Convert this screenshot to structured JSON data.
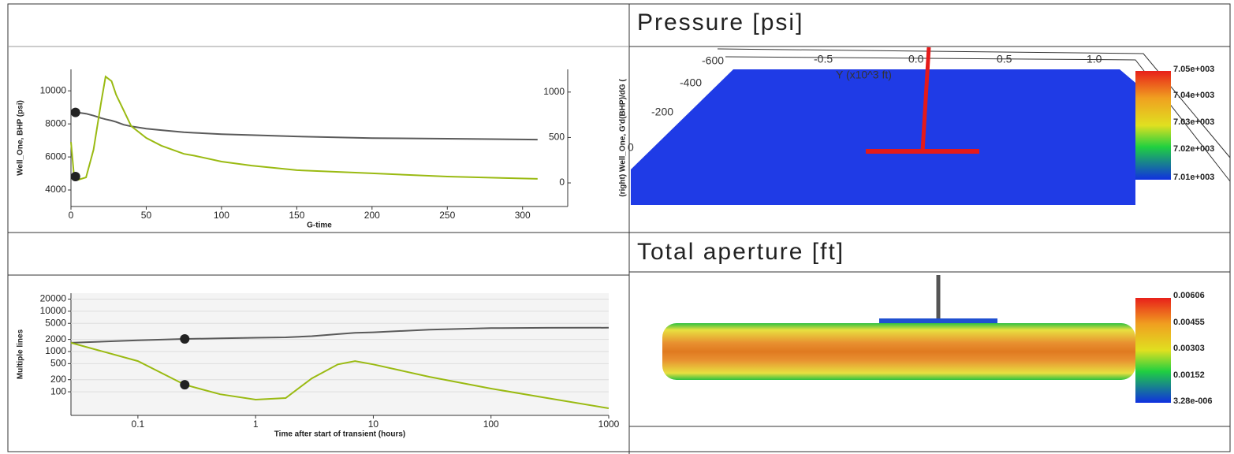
{
  "chart_data": [
    {
      "type": "line",
      "xlabel": "G-time",
      "ylabel": "Well_One, BHP (psi)",
      "y2label": "(right) Well_One, G'd(BHP)/dG (",
      "x": [
        0,
        2,
        5,
        10,
        15,
        20,
        23,
        27,
        30,
        35,
        40,
        50,
        60,
        75,
        82,
        100,
        120,
        150,
        200,
        250,
        310
      ],
      "series": [
        {
          "color": "#5a5a5a",
          "values": [
            8700,
            8700,
            8680,
            8620,
            8500,
            8350,
            8280,
            8200,
            8120,
            7950,
            7850,
            7710,
            7620,
            7500,
            7460,
            7380,
            7320,
            7240,
            7140,
            7100,
            7050
          ]
        },
        {
          "color": "#9aba12",
          "axis": "y2",
          "values": [
            450,
            87,
            35,
            60,
            365,
            885,
            1170,
            1120,
            970,
            800,
            625,
            495,
            410,
            320,
            300,
            235,
            190,
            140,
            105,
            70,
            45
          ]
        }
      ],
      "cursor_x": 3,
      "xlim": [
        0,
        330
      ],
      "xticks": [
        0,
        50,
        100,
        150,
        200,
        250,
        300
      ],
      "ylim": [
        3000,
        11300
      ],
      "yticks": [
        4000,
        6000,
        8000,
        10000
      ],
      "y2lim": [
        -260,
        1250
      ],
      "y2ticks": [
        0,
        500,
        1000
      ]
    },
    {
      "type": "line",
      "xlabel": "Time after start of transient (hours)",
      "ylabel": "Multiple lines",
      "xlog": true,
      "ylog": true,
      "grid": true,
      "x": [
        0.027,
        0.1,
        0.25,
        0.5,
        1,
        1.8,
        3,
        5,
        7,
        10,
        30,
        100,
        300,
        1000
      ],
      "series": [
        {
          "color": "#5a5a5a",
          "values": [
            1650,
            1900,
            2050,
            2120,
            2200,
            2250,
            2400,
            2700,
            2900,
            3000,
            3500,
            3800,
            3880,
            3900
          ]
        },
        {
          "color": "#9aba12",
          "values": [
            1650,
            580,
            150,
            87,
            64,
            70,
            215,
            480,
            580,
            480,
            235,
            120,
            70,
            39
          ]
        }
      ],
      "cursor_x": 0.25,
      "xlim": [
        0.027,
        1000
      ],
      "xticks": [
        0.1,
        1,
        10,
        100,
        1000
      ],
      "ylim": [
        26,
        28000
      ],
      "yticks": [
        100,
        200,
        500,
        1000,
        2000,
        5000,
        10000,
        20000
      ]
    }
  ],
  "views": [
    {
      "title": "Pressure [psi]",
      "colorbar_labels": [
        "7.05e+003",
        "7.04e+003",
        "7.03e+003",
        "7.02e+003",
        "7.01e+003"
      ],
      "axis_labels": [
        "-600",
        "-400",
        "-200",
        "0",
        "-0.5",
        "0.0",
        "0.5",
        "1.0",
        "Y (x10^3 ft)"
      ]
    },
    {
      "title": "Total aperture [ft]",
      "colorbar_labels": [
        "0.00606",
        "0.00455",
        "0.00303",
        "0.00152",
        "3.28e-006"
      ]
    }
  ]
}
